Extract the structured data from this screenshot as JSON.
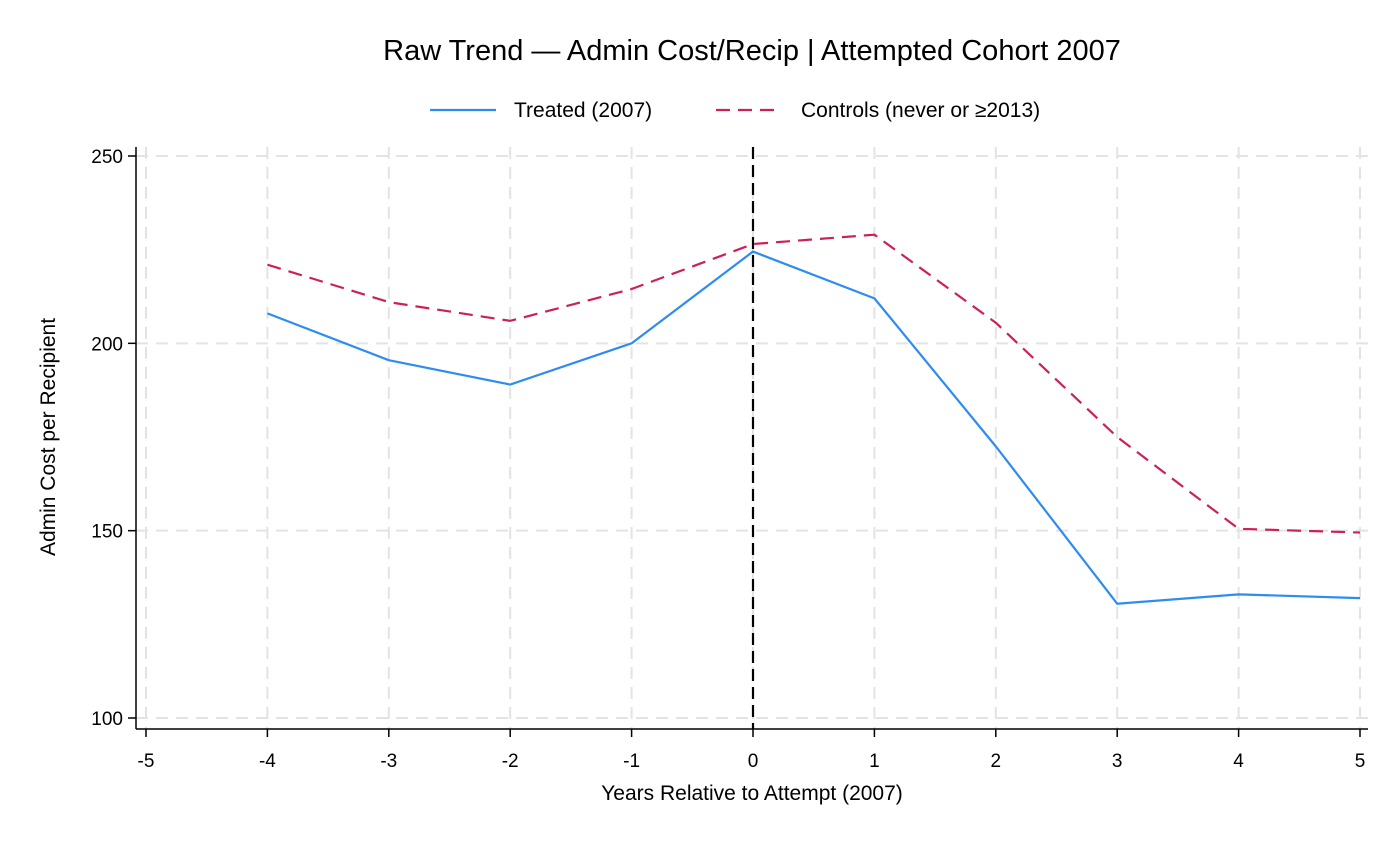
{
  "chart_data": {
    "type": "line",
    "title": "Raw Trend — Admin Cost/Recip | Attempted Cohort 2007",
    "xlabel": "Years Relative to Attempt (2007)",
    "ylabel": "Admin Cost per Recipient",
    "xlim": [
      -5,
      5
    ],
    "ylim": [
      100,
      250
    ],
    "x_ticks": [
      -5,
      -4,
      -3,
      -2,
      -1,
      0,
      1,
      2,
      3,
      4,
      5
    ],
    "x_tick_labels": [
      "-5",
      "-4",
      "-3",
      "-2",
      "-1",
      "0",
      "1",
      "2",
      "3",
      "4",
      "5"
    ],
    "y_ticks": [
      100,
      150,
      200,
      250
    ],
    "y_tick_labels": [
      "100",
      "150",
      "200",
      "250"
    ],
    "grid": true,
    "legend_position": "top-center",
    "reference_line": {
      "x": 0,
      "style": "dashed",
      "color": "#000000"
    },
    "x": [
      -4,
      -3,
      -2,
      -1,
      0,
      1,
      2,
      3,
      4,
      5
    ],
    "series": [
      {
        "name": "Treated (2007)",
        "color": "#2e8cf0",
        "dash": "solid",
        "values": [
          208,
          195.5,
          189,
          200,
          224.5,
          212,
          172.5,
          130.5,
          133,
          132
        ]
      },
      {
        "name": "Controls (never or ≥2013)",
        "color": "#cc2157",
        "dash": "dashed",
        "values": [
          221,
          211,
          206,
          214.5,
          226.5,
          229,
          205.5,
          175,
          150.5,
          149.5
        ]
      }
    ]
  }
}
